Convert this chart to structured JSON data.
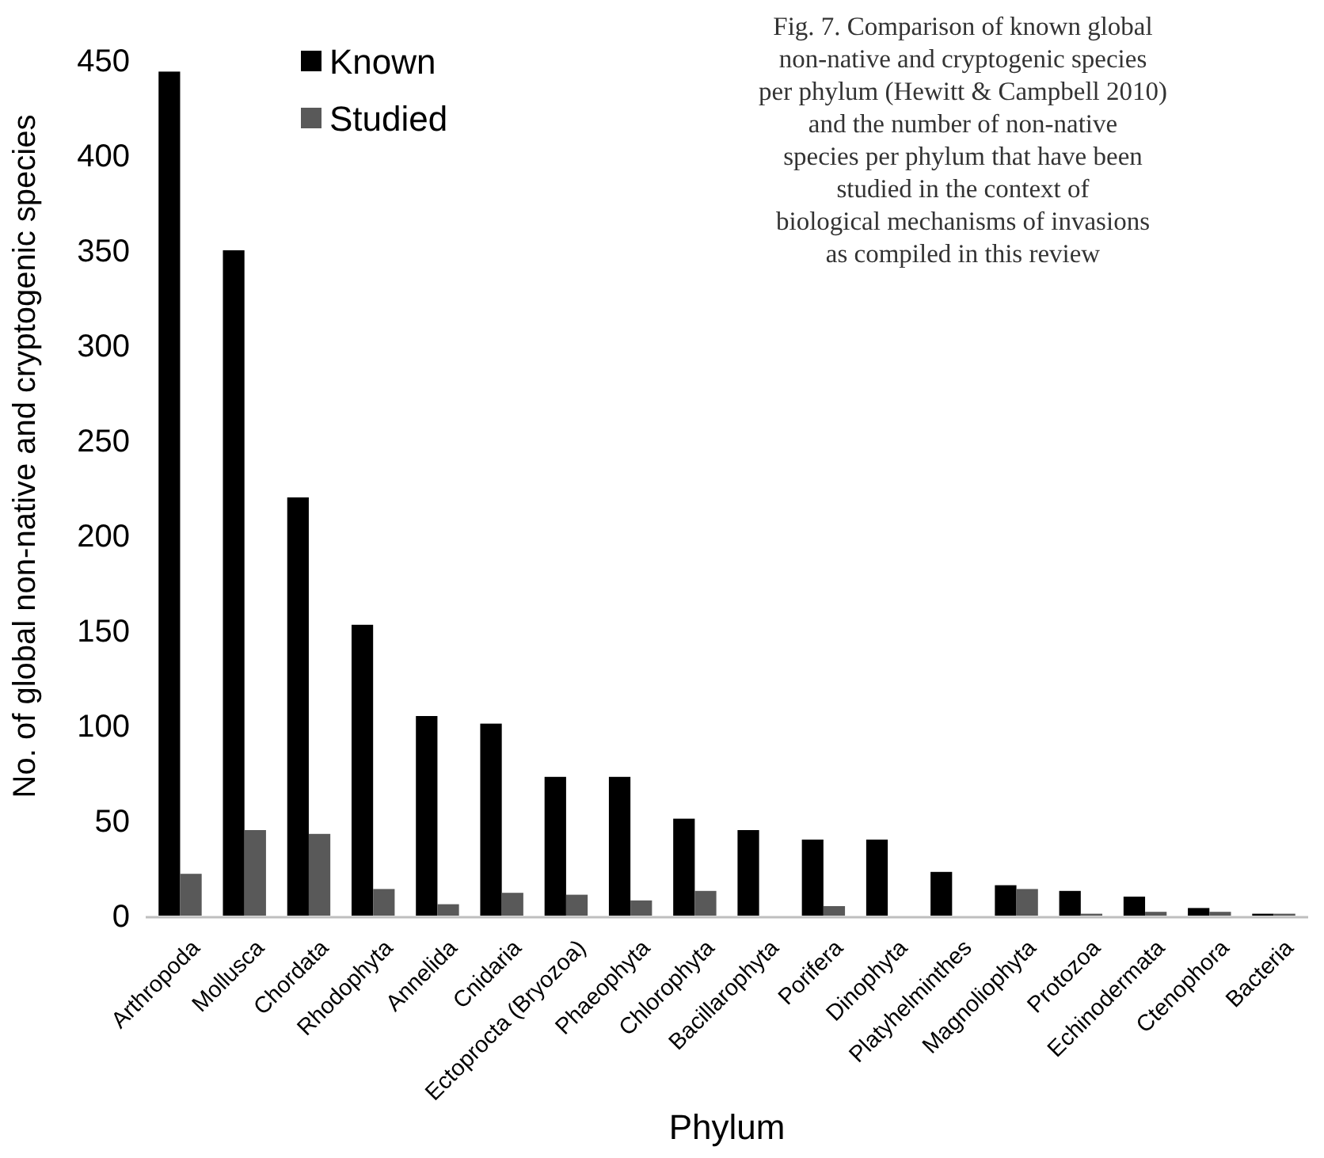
{
  "chart_data": {
    "type": "bar",
    "xlabel": "Phylum",
    "ylabel": "No. of global non-native and cryptogenic species",
    "categories": [
      "Arthropoda",
      "Mollusca",
      "Chordata",
      "Rhodophyta",
      "Annelida",
      "Cnidaria",
      "Ectoprocta (Bryozoa)",
      "Phaeophyta",
      "Chlorophyta",
      "Bacillarophyta",
      "Porifera",
      "Dinophyta",
      "Platyhelminthes",
      "Magnoliophyta",
      "Protozoa",
      "Echinodermata",
      "Ctenophora",
      "Bacteria"
    ],
    "series": [
      {
        "name": "Known",
        "color": "#000000",
        "values": [
          444,
          350,
          220,
          153,
          105,
          101,
          73,
          73,
          51,
          45,
          40,
          40,
          23,
          16,
          13,
          10,
          4,
          1
        ]
      },
      {
        "name": "Studied",
        "color": "#595959",
        "values": [
          22,
          45,
          43,
          14,
          6,
          12,
          11,
          8,
          13,
          0,
          5,
          0,
          0,
          14,
          1,
          2,
          2,
          1
        ]
      }
    ],
    "ylim": [
      0,
      450
    ],
    "yticks": [
      0,
      50,
      100,
      150,
      200,
      250,
      300,
      350,
      400,
      450
    ],
    "grid": false,
    "legend": "top left",
    "annotations": [
      "Fig. 7. Comparison of known global non-native and cryptogenic species per phylum (Hewitt & Campbell 2010) and the number of non-native species per phylum that have been studied in the context of biological mechanisms of invasions as compiled in this review"
    ]
  }
}
